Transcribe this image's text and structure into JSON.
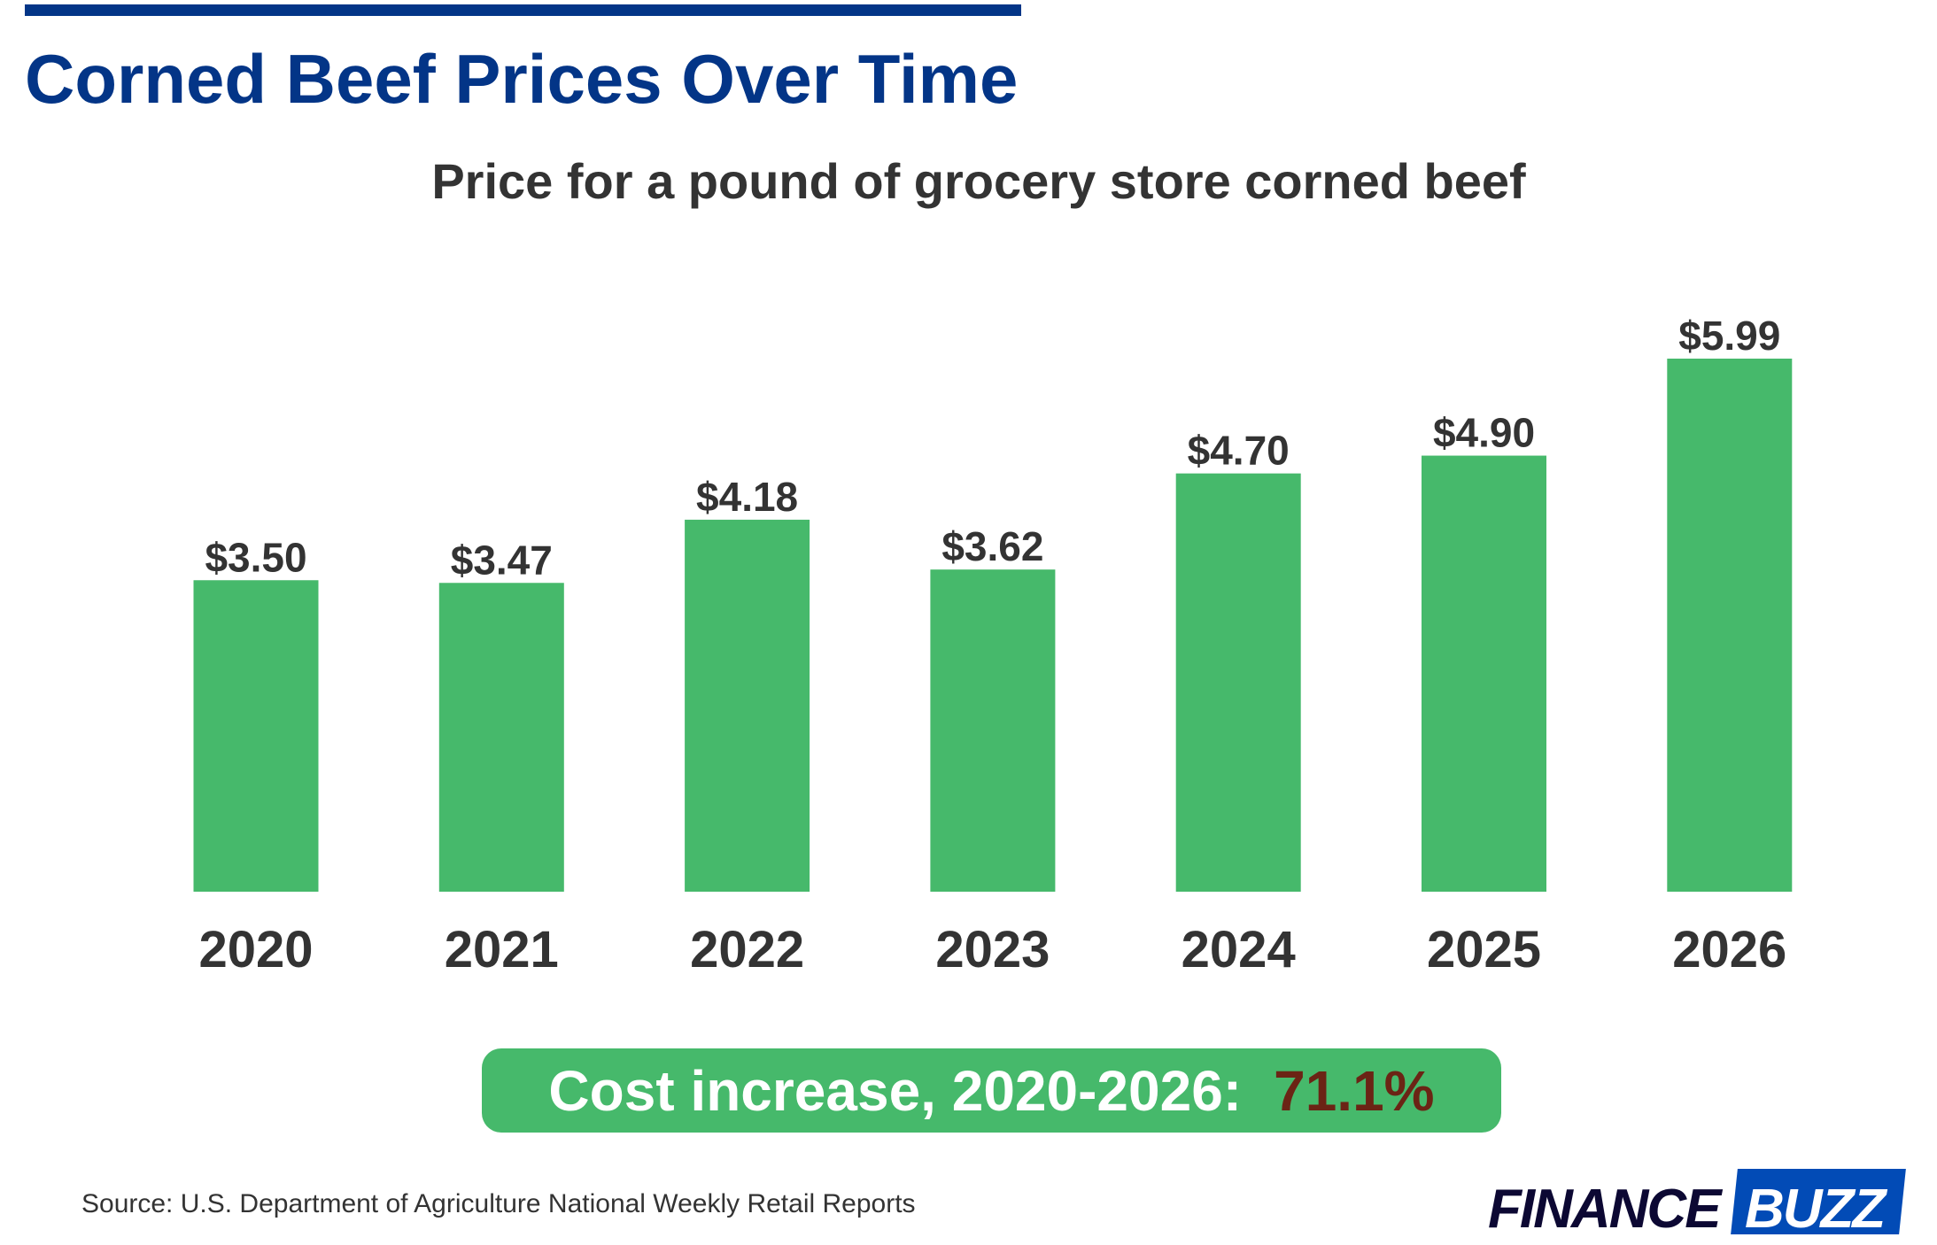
{
  "header": {
    "title": "Corned Beef Prices Over Time",
    "subtitle": "Price for a pound of grocery store corned beef"
  },
  "chart_data": {
    "type": "bar",
    "title": "Corned Beef Prices Over Time",
    "subtitle": "Price for a pound of grocery store corned beef",
    "categories": [
      "2020",
      "2021",
      "2022",
      "2023",
      "2024",
      "2025",
      "2026"
    ],
    "values": [
      3.5,
      3.47,
      4.18,
      3.62,
      4.7,
      4.9,
      5.99
    ],
    "data_labels": [
      "$3.50",
      "$3.47",
      "$4.18",
      "$3.62",
      "$4.70",
      "$4.90",
      "$5.99"
    ],
    "ylim": [
      0,
      6.2
    ],
    "grid": false,
    "bar_color": "#46b96b",
    "xlabel": "",
    "ylabel": ""
  },
  "callout": {
    "label": "Cost increase, 2020-2026:",
    "value": "71.1%",
    "bg_color": "#46b96b",
    "value_color": "#6b2415"
  },
  "footer": {
    "source": "Source: U.S. Department of Agriculture National Weekly Retail Reports",
    "logo_text": "FINANCEBUZZ",
    "logo_part1": "FINANCE",
    "logo_part2": "BUZZ"
  },
  "colors": {
    "title": "#033587",
    "logo_blue": "#024bb6"
  }
}
